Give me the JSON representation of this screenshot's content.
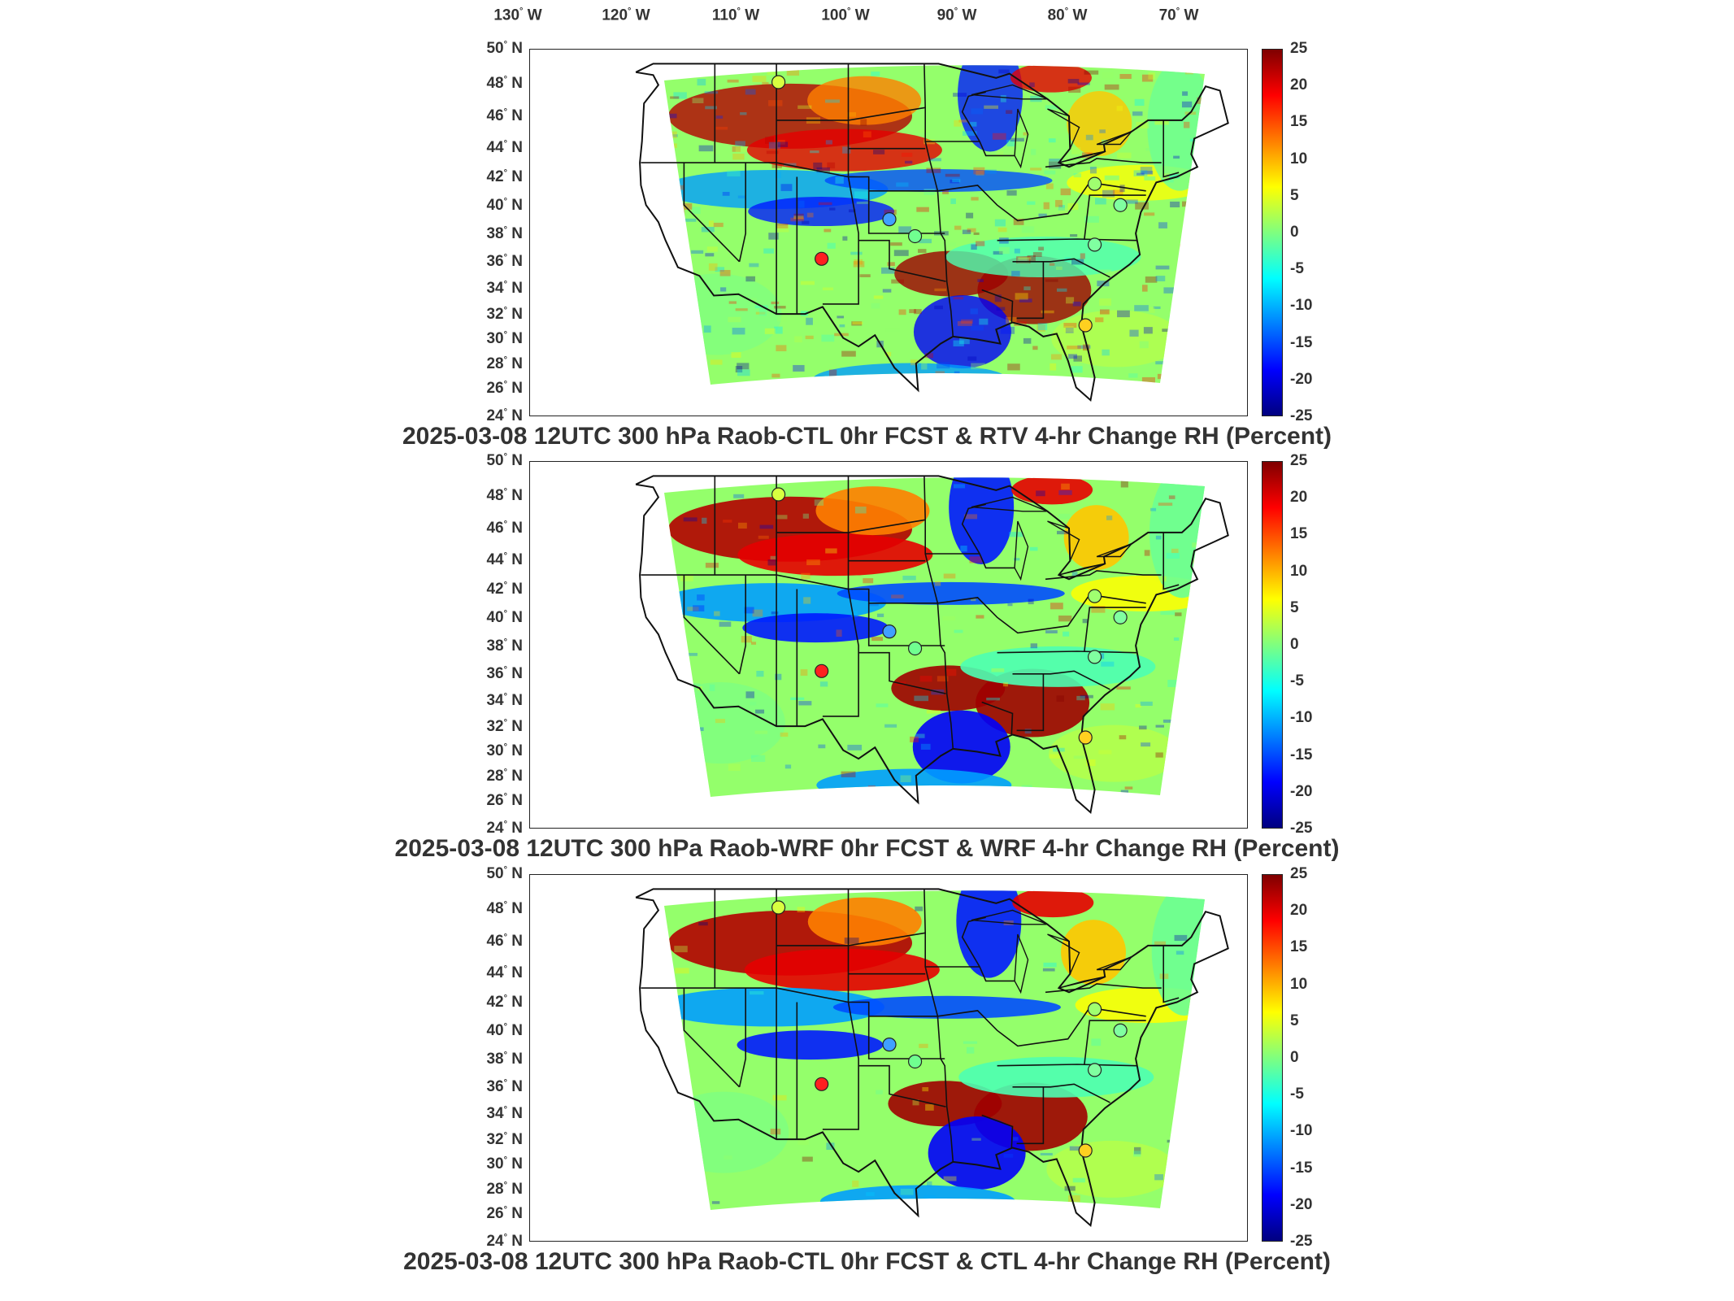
{
  "longitude_labels": [
    "130",
    "120",
    "110",
    "100",
    "90",
    "80",
    "70"
  ],
  "longitude_suffix": "W",
  "latitude_labels": [
    "50",
    "48",
    "46",
    "44",
    "42",
    "40",
    "38",
    "36",
    "34",
    "32",
    "30",
    "28",
    "26",
    "24"
  ],
  "latitude_suffix": "N",
  "degree_symbol": "°",
  "colorbar": {
    "ticks": [
      "25",
      "20",
      "15",
      "10",
      "5",
      "0",
      "-5",
      "-10",
      "-15",
      "-20",
      "-25"
    ],
    "range": [
      -25,
      25
    ],
    "colormap": "jet",
    "colors": [
      "#00007f",
      "#0000ff",
      "#007fff",
      "#00ffff",
      "#7fff7f",
      "#ffff00",
      "#ff7f00",
      "#ff0000",
      "#7f0000"
    ]
  },
  "panels": [
    {
      "title": "2025-03-08 12UTC 300 hPa Raob-CTL 0hr FCST & RTV 4-hr Change RH (Percent)"
    },
    {
      "title": "2025-03-08 12UTC 300 hPa Raob-WRF 0hr FCST & WRF 4-hr Change RH (Percent)"
    },
    {
      "title": "2025-03-08 12UTC 300 hPa Raob-CTL 0hr FCST & CTL 4-hr Change RH (Percent)"
    }
  ],
  "map_data": {
    "type": "contour_fill_map",
    "region": "Contiguous United States",
    "lon_range": [
      -135,
      -65
    ],
    "lat_range": [
      24,
      50
    ],
    "quantity": "RH 4-hr change (Percent)",
    "raob_markers": [
      {
        "lon": -110.8,
        "lat": 47.7,
        "value_color": "#d8ff40"
      },
      {
        "lon": -106.6,
        "lat": 35.2,
        "value_color": "#ff2020"
      },
      {
        "lon": -100.0,
        "lat": 38.0,
        "value_color": "#40a0ff"
      },
      {
        "lon": -97.5,
        "lat": 36.8,
        "value_color": "#70ff90"
      },
      {
        "lon": -80.0,
        "lat": 40.5,
        "value_color": "#a0ff70"
      },
      {
        "lon": -80.0,
        "lat": 36.2,
        "value_color": "#80ffa0"
      },
      {
        "lon": -77.5,
        "lat": 39.0,
        "value_color": "#80ffa0"
      },
      {
        "lon": -80.9,
        "lat": 30.5,
        "value_color": "#ffd020"
      }
    ]
  }
}
